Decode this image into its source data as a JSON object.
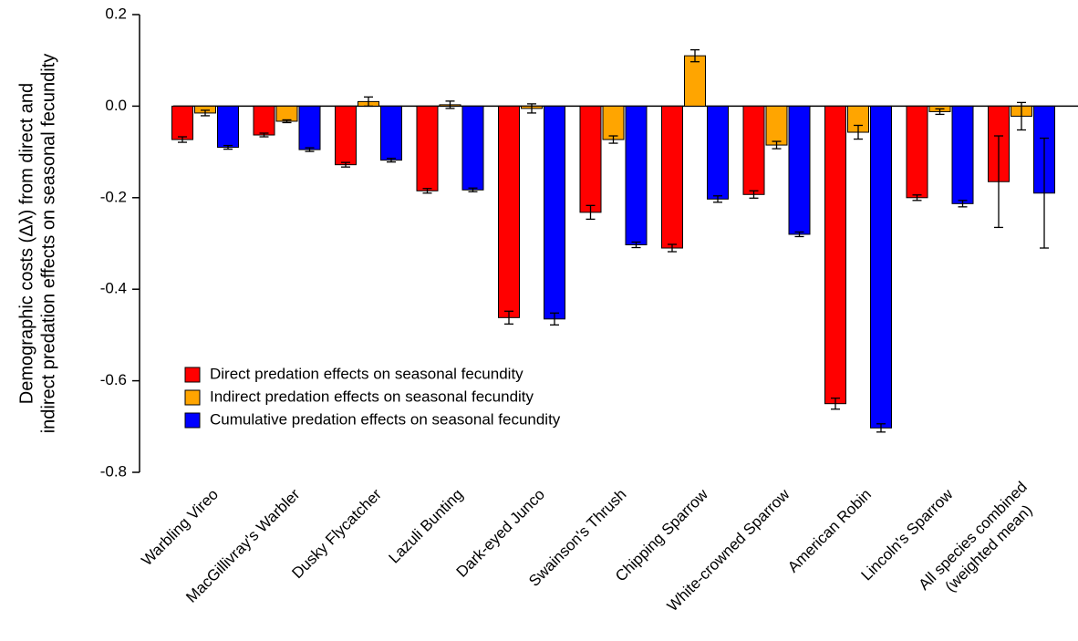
{
  "chart_data": {
    "type": "bar",
    "ylabel": [
      "Demographic costs (Δλ) from direct and",
      "indirect predation effects on seasonal fecundity"
    ],
    "categories": [
      "Warbling Vireo",
      "MacGillivray's Warbler",
      "Dusky Flycatcher",
      "Lazuli Bunting",
      "Dark-eyed Junco",
      "Swainson's Thrush",
      "Chipping Sparrow",
      "White-crowned Sparrow",
      "American Robin",
      "Lincoln's Sparrow",
      "All species combined\n(weighted mean)"
    ],
    "series": [
      {
        "name": "Direct predation effects on seasonal fecundity",
        "color": "#ff0000",
        "values": [
          -0.073,
          -0.063,
          -0.128,
          -0.185,
          -0.462,
          -0.232,
          -0.31,
          -0.193,
          -0.65,
          -0.2,
          -0.165
        ],
        "errors": [
          0.006,
          0.004,
          0.005,
          0.005,
          0.014,
          0.015,
          0.008,
          0.008,
          0.012,
          0.006,
          0.1
        ]
      },
      {
        "name": "Indirect predation effects on seasonal fecundity",
        "color": "#ffa500",
        "values": [
          -0.015,
          -0.033,
          0.01,
          0.003,
          -0.005,
          -0.073,
          0.11,
          -0.085,
          -0.057,
          -0.012,
          -0.022
        ],
        "errors": [
          0.006,
          0.003,
          0.01,
          0.008,
          0.01,
          0.008,
          0.013,
          0.008,
          0.015,
          0.006,
          0.03
        ]
      },
      {
        "name": "Cumulative predation effects on seasonal fecundity",
        "color": "#0000ff",
        "values": [
          -0.09,
          -0.095,
          -0.118,
          -0.183,
          -0.465,
          -0.303,
          -0.203,
          -0.28,
          -0.703,
          -0.213,
          -0.19
        ],
        "errors": [
          0.004,
          0.004,
          0.004,
          0.004,
          0.013,
          0.006,
          0.007,
          0.005,
          0.009,
          0.007,
          0.12
        ]
      }
    ],
    "ylim": [
      -0.8,
      0.2
    ],
    "yticks": [
      0.2,
      {
        "value": 0,
        "label": "0.0"
      },
      -0.2,
      -0.4,
      -0.6,
      -0.8
    ]
  }
}
